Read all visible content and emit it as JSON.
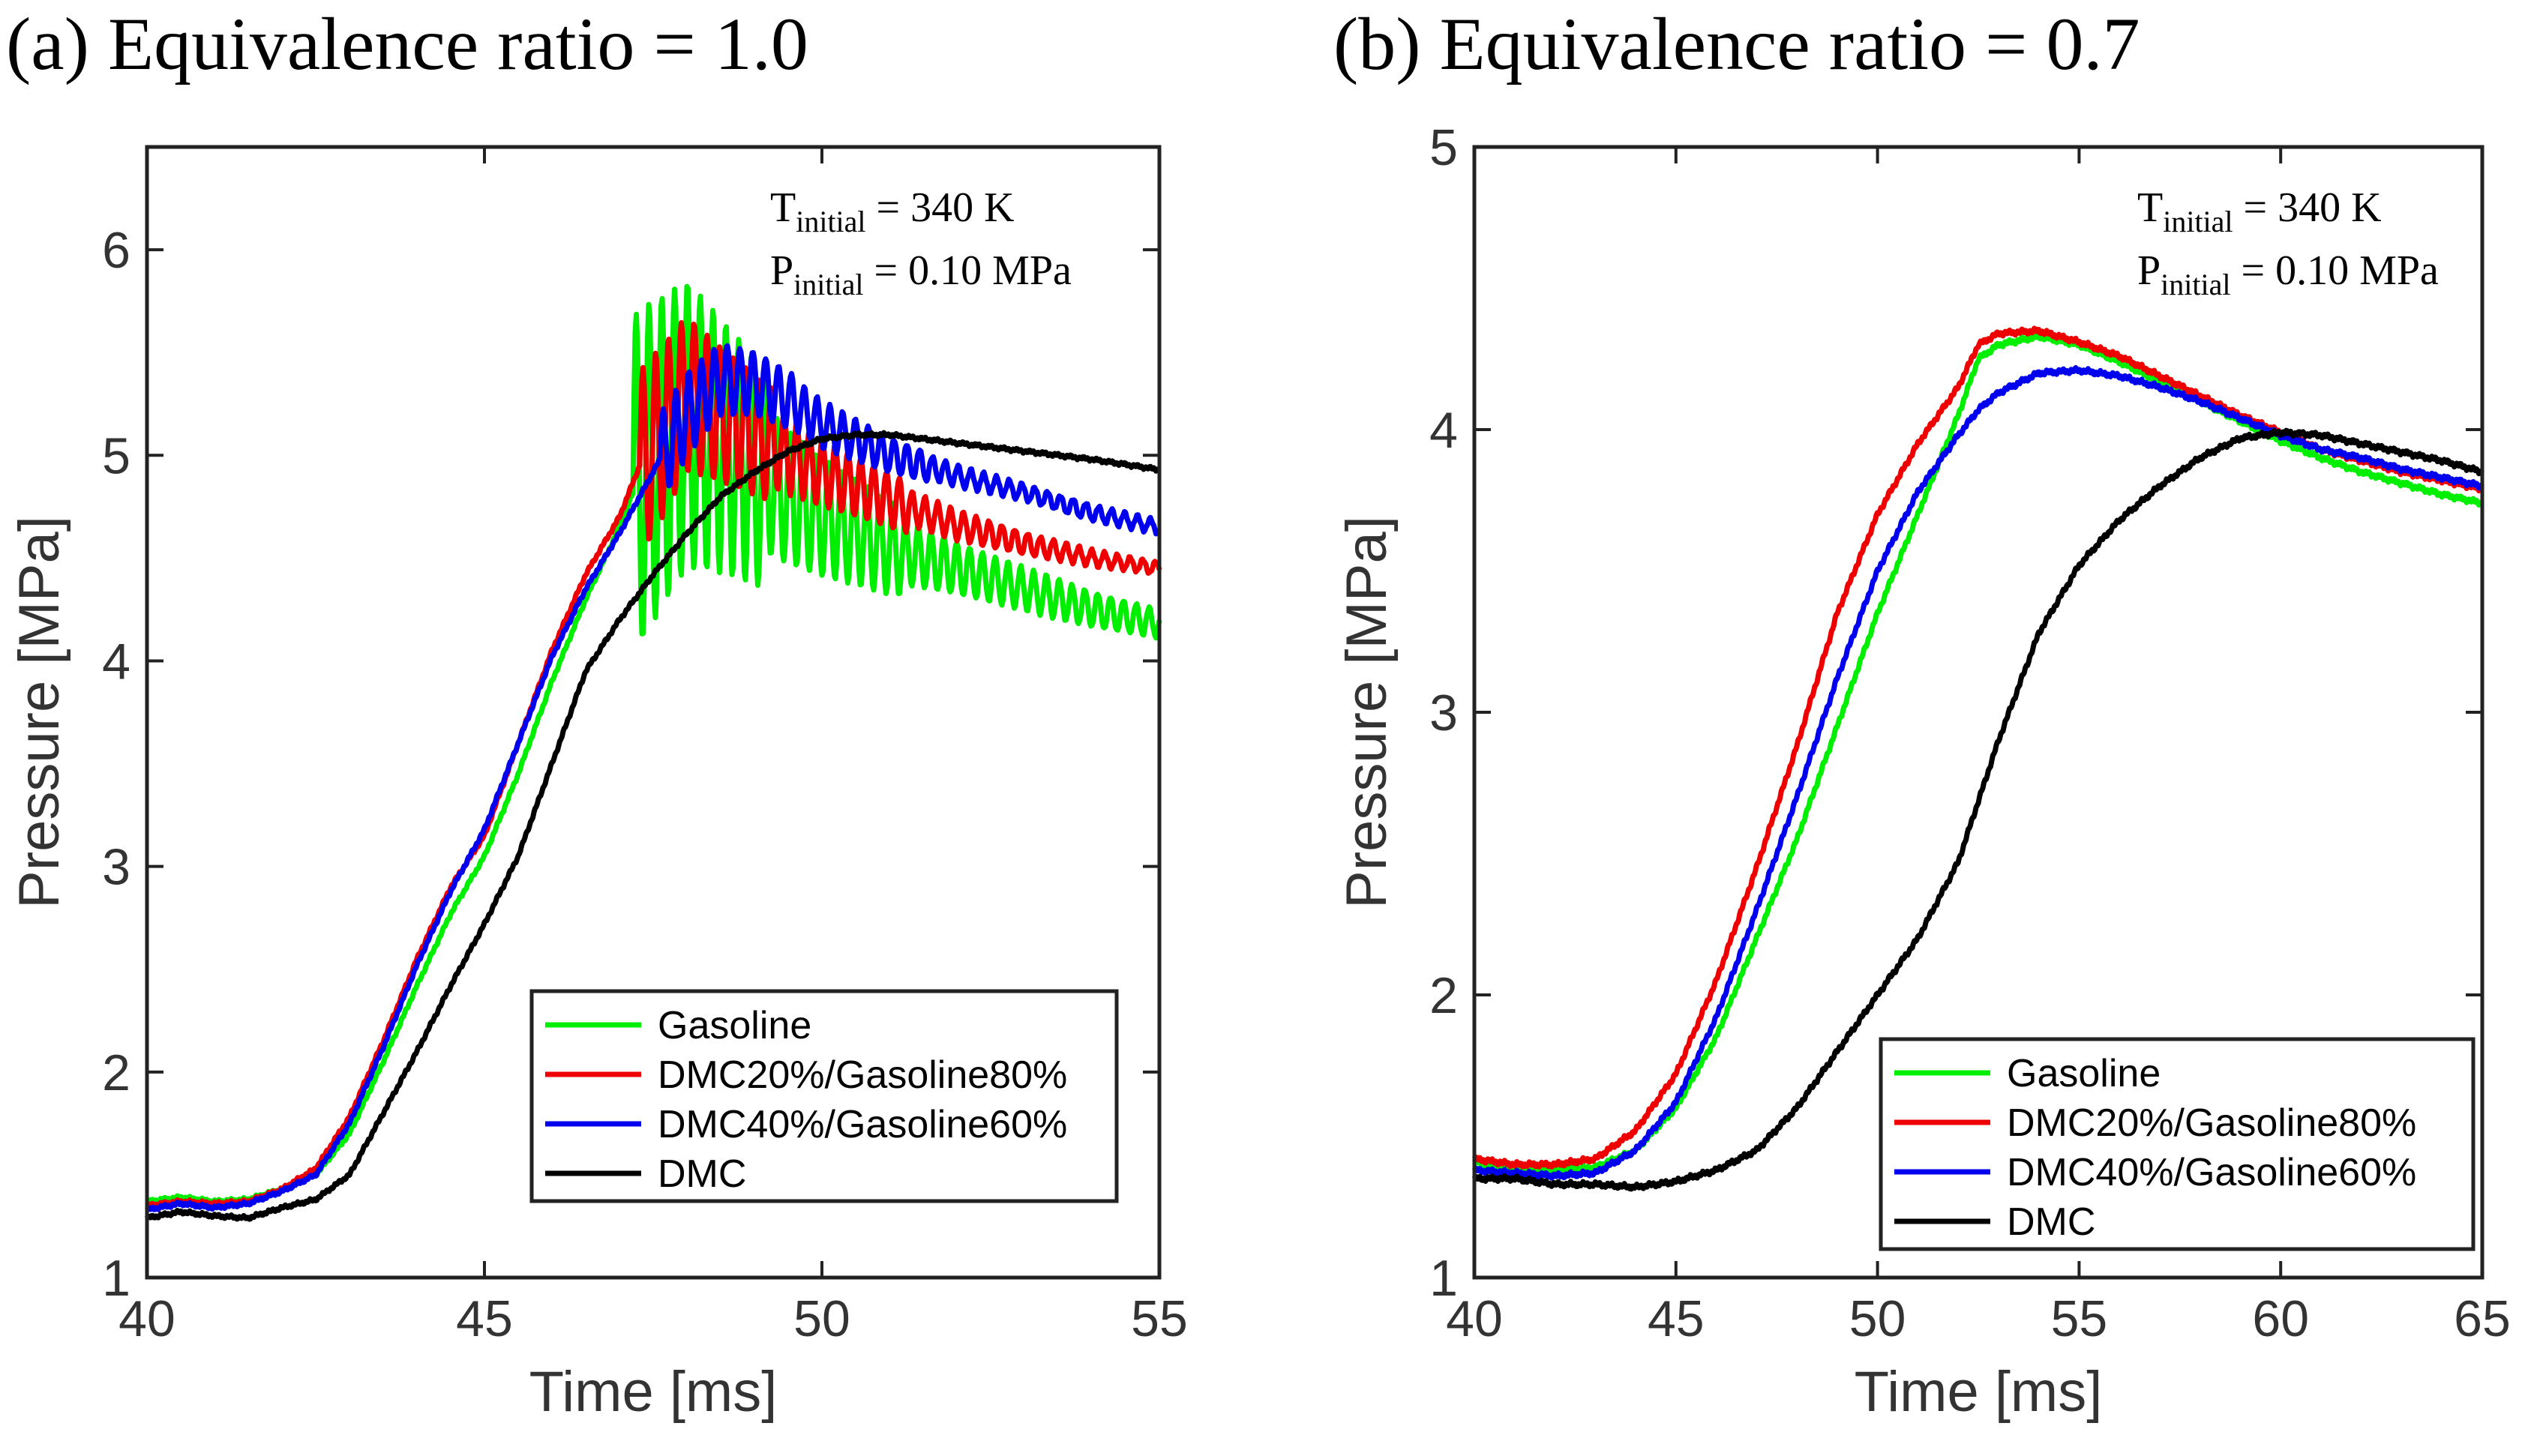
{
  "chart_data": [
    {
      "type": "line",
      "title": "(a) Equivalence ratio = 1.0",
      "xlabel": "Time [ms]",
      "ylabel": "Pressure [MPa]",
      "xlim": [
        40,
        55
      ],
      "ylim": [
        1,
        6.5
      ],
      "xticks": [
        40,
        45,
        50,
        55
      ],
      "yticks": [
        1,
        2,
        3,
        4,
        5,
        6
      ],
      "grid": false,
      "legend_position": "bottom-right",
      "annotation": {
        "t_label": "T",
        "t_sub": "initial",
        "t_value": " = 340 K",
        "p_label": "P",
        "p_sub": "initial",
        "p_value": " = 0.10 MPa"
      },
      "series": [
        {
          "name": "Gasoline",
          "color": "#00ee00",
          "x": [
            40,
            40.5,
            41,
            41.5,
            42,
            42.5,
            43,
            43.5,
            44,
            44.5,
            45,
            45.5,
            46,
            46.5,
            47,
            47.3,
            48,
            48.5,
            49,
            49.5,
            50,
            51,
            52,
            53,
            54,
            55
          ],
          "y": [
            1.37,
            1.39,
            1.37,
            1.38,
            1.43,
            1.5,
            1.7,
            2.05,
            2.42,
            2.77,
            3.05,
            3.45,
            3.9,
            4.3,
            4.65,
            4.9,
            5.15,
            5.05,
            4.92,
            4.8,
            4.7,
            4.55,
            4.45,
            4.35,
            4.25,
            4.18
          ],
          "oscillation": {
            "start": 47.2,
            "period": 0.19,
            "amplitude": [
              0.85,
              0.35,
              0.16,
              0.1
            ]
          }
        },
        {
          "name": "DMC20%/Gasoline80%",
          "color": "#ee0000",
          "x": [
            40,
            40.5,
            41,
            41.5,
            42,
            42.5,
            43,
            43.5,
            44,
            44.5,
            45,
            45.5,
            46,
            46.5,
            47,
            47.3,
            48,
            48.5,
            49,
            49.5,
            50,
            51,
            52,
            53,
            54,
            55
          ],
          "y": [
            1.35,
            1.37,
            1.36,
            1.37,
            1.43,
            1.53,
            1.78,
            2.15,
            2.55,
            2.9,
            3.15,
            3.6,
            4.05,
            4.42,
            4.7,
            4.95,
            5.3,
            5.2,
            5.1,
            5.0,
            4.92,
            4.78,
            4.66,
            4.57,
            4.5,
            4.45
          ],
          "oscillation": {
            "start": 47.3,
            "period": 0.19,
            "amplitude": [
              0.45,
              0.2,
              0.08,
              0.05
            ]
          }
        },
        {
          "name": "DMC40%/Gasoline60%",
          "color": "#0000ee",
          "x": [
            40,
            40.5,
            41,
            41.5,
            42,
            42.5,
            43,
            43.5,
            44,
            44.5,
            45,
            45.5,
            46,
            46.5,
            47,
            47.3,
            47.6,
            48,
            48.5,
            49,
            49.5,
            50,
            51,
            52,
            53,
            54,
            55
          ],
          "y": [
            1.33,
            1.36,
            1.34,
            1.36,
            1.42,
            1.5,
            1.75,
            2.12,
            2.52,
            2.88,
            3.18,
            3.6,
            4.02,
            4.35,
            4.62,
            4.8,
            4.98,
            5.2,
            5.37,
            5.35,
            5.27,
            5.15,
            5.0,
            4.9,
            4.82,
            4.72,
            4.65
          ],
          "oscillation": {
            "start": 47.6,
            "period": 0.19,
            "amplitude": [
              0.22,
              0.12,
              0.06,
              0.04
            ]
          }
        },
        {
          "name": "DMC",
          "color": "#000000",
          "x": [
            40,
            40.5,
            41,
            41.5,
            42,
            42.5,
            43,
            43.5,
            44,
            44.5,
            45,
            45.5,
            46,
            46.5,
            47,
            47.5,
            48,
            48.5,
            49,
            49.5,
            50,
            50.5,
            51,
            52,
            53,
            54,
            55
          ],
          "y": [
            1.29,
            1.32,
            1.3,
            1.29,
            1.34,
            1.38,
            1.5,
            1.8,
            2.1,
            2.42,
            2.72,
            3.05,
            3.5,
            3.95,
            4.2,
            4.42,
            4.62,
            4.8,
            4.92,
            5.02,
            5.08,
            5.1,
            5.1,
            5.06,
            5.02,
            4.98,
            4.93
          ]
        }
      ]
    },
    {
      "type": "line",
      "title": "(b) Equivalence ratio = 0.7",
      "xlabel": "Time [ms]",
      "ylabel": "Pressure [MPa]",
      "xlim": [
        40,
        65
      ],
      "ylim": [
        1,
        5
      ],
      "xticks": [
        40,
        45,
        50,
        55,
        60,
        65
      ],
      "yticks": [
        1,
        2,
        3,
        4,
        5
      ],
      "grid": false,
      "legend_position": "bottom-right",
      "annotation": {
        "t_label": "T",
        "t_sub": "initial",
        "t_value": " = 340 K",
        "p_label": "P",
        "p_sub": "initial",
        "p_value": " = 0.10 MPa"
      },
      "series": [
        {
          "name": "Gasoline",
          "color": "#00ee00",
          "x": [
            40,
            41,
            42,
            43,
            44,
            45,
            46,
            47,
            48,
            49,
            50,
            51,
            52,
            52.5,
            53,
            54,
            55,
            56,
            57,
            58,
            59,
            60,
            61,
            62,
            63,
            64,
            65
          ],
          "y": [
            1.41,
            1.38,
            1.38,
            1.39,
            1.45,
            1.6,
            1.85,
            2.2,
            2.55,
            2.95,
            3.35,
            3.7,
            4.05,
            4.25,
            4.3,
            4.33,
            4.3,
            4.24,
            4.17,
            4.1,
            4.03,
            3.96,
            3.9,
            3.85,
            3.81,
            3.77,
            3.74
          ]
        },
        {
          "name": "DMC20%/Gasoline80%",
          "color": "#ee0000",
          "x": [
            40,
            41,
            42,
            43,
            44,
            45,
            46,
            47,
            48,
            49,
            50,
            51,
            52,
            52.5,
            53,
            54,
            55,
            56,
            57,
            58,
            59,
            60,
            61,
            62,
            63,
            64,
            65
          ],
          "y": [
            1.42,
            1.4,
            1.4,
            1.42,
            1.52,
            1.72,
            2.05,
            2.45,
            2.88,
            3.35,
            3.7,
            3.95,
            4.15,
            4.3,
            4.34,
            4.35,
            4.31,
            4.26,
            4.19,
            4.12,
            4.05,
            3.99,
            3.93,
            3.89,
            3.85,
            3.82,
            3.79
          ]
        },
        {
          "name": "DMC40%/Gasoline60%",
          "color": "#0000ee",
          "x": [
            40,
            41,
            42,
            43,
            44,
            45,
            46,
            47,
            48,
            49,
            50,
            51,
            52,
            52.5,
            53,
            54,
            55,
            56,
            57,
            58,
            59,
            60,
            61,
            62,
            63,
            64,
            65
          ],
          "y": [
            1.38,
            1.37,
            1.36,
            1.37,
            1.45,
            1.62,
            1.92,
            2.3,
            2.7,
            3.12,
            3.5,
            3.78,
            3.98,
            4.07,
            4.13,
            4.2,
            4.21,
            4.19,
            4.15,
            4.1,
            4.04,
            3.98,
            3.93,
            3.9,
            3.86,
            3.83,
            3.8
          ]
        },
        {
          "name": "DMC",
          "color": "#000000",
          "x": [
            40,
            41,
            42,
            43,
            44,
            45,
            46,
            47,
            48,
            49,
            50,
            51,
            52,
            53,
            54,
            55,
            56,
            57,
            58,
            59,
            60,
            61,
            62,
            63,
            64,
            65
          ],
          "y": [
            1.35,
            1.35,
            1.33,
            1.33,
            1.32,
            1.34,
            1.38,
            1.45,
            1.6,
            1.8,
            2.0,
            2.2,
            2.47,
            2.9,
            3.28,
            3.52,
            3.68,
            3.8,
            3.9,
            3.97,
            3.99,
            3.98,
            3.95,
            3.92,
            3.89,
            3.85
          ]
        }
      ]
    }
  ]
}
